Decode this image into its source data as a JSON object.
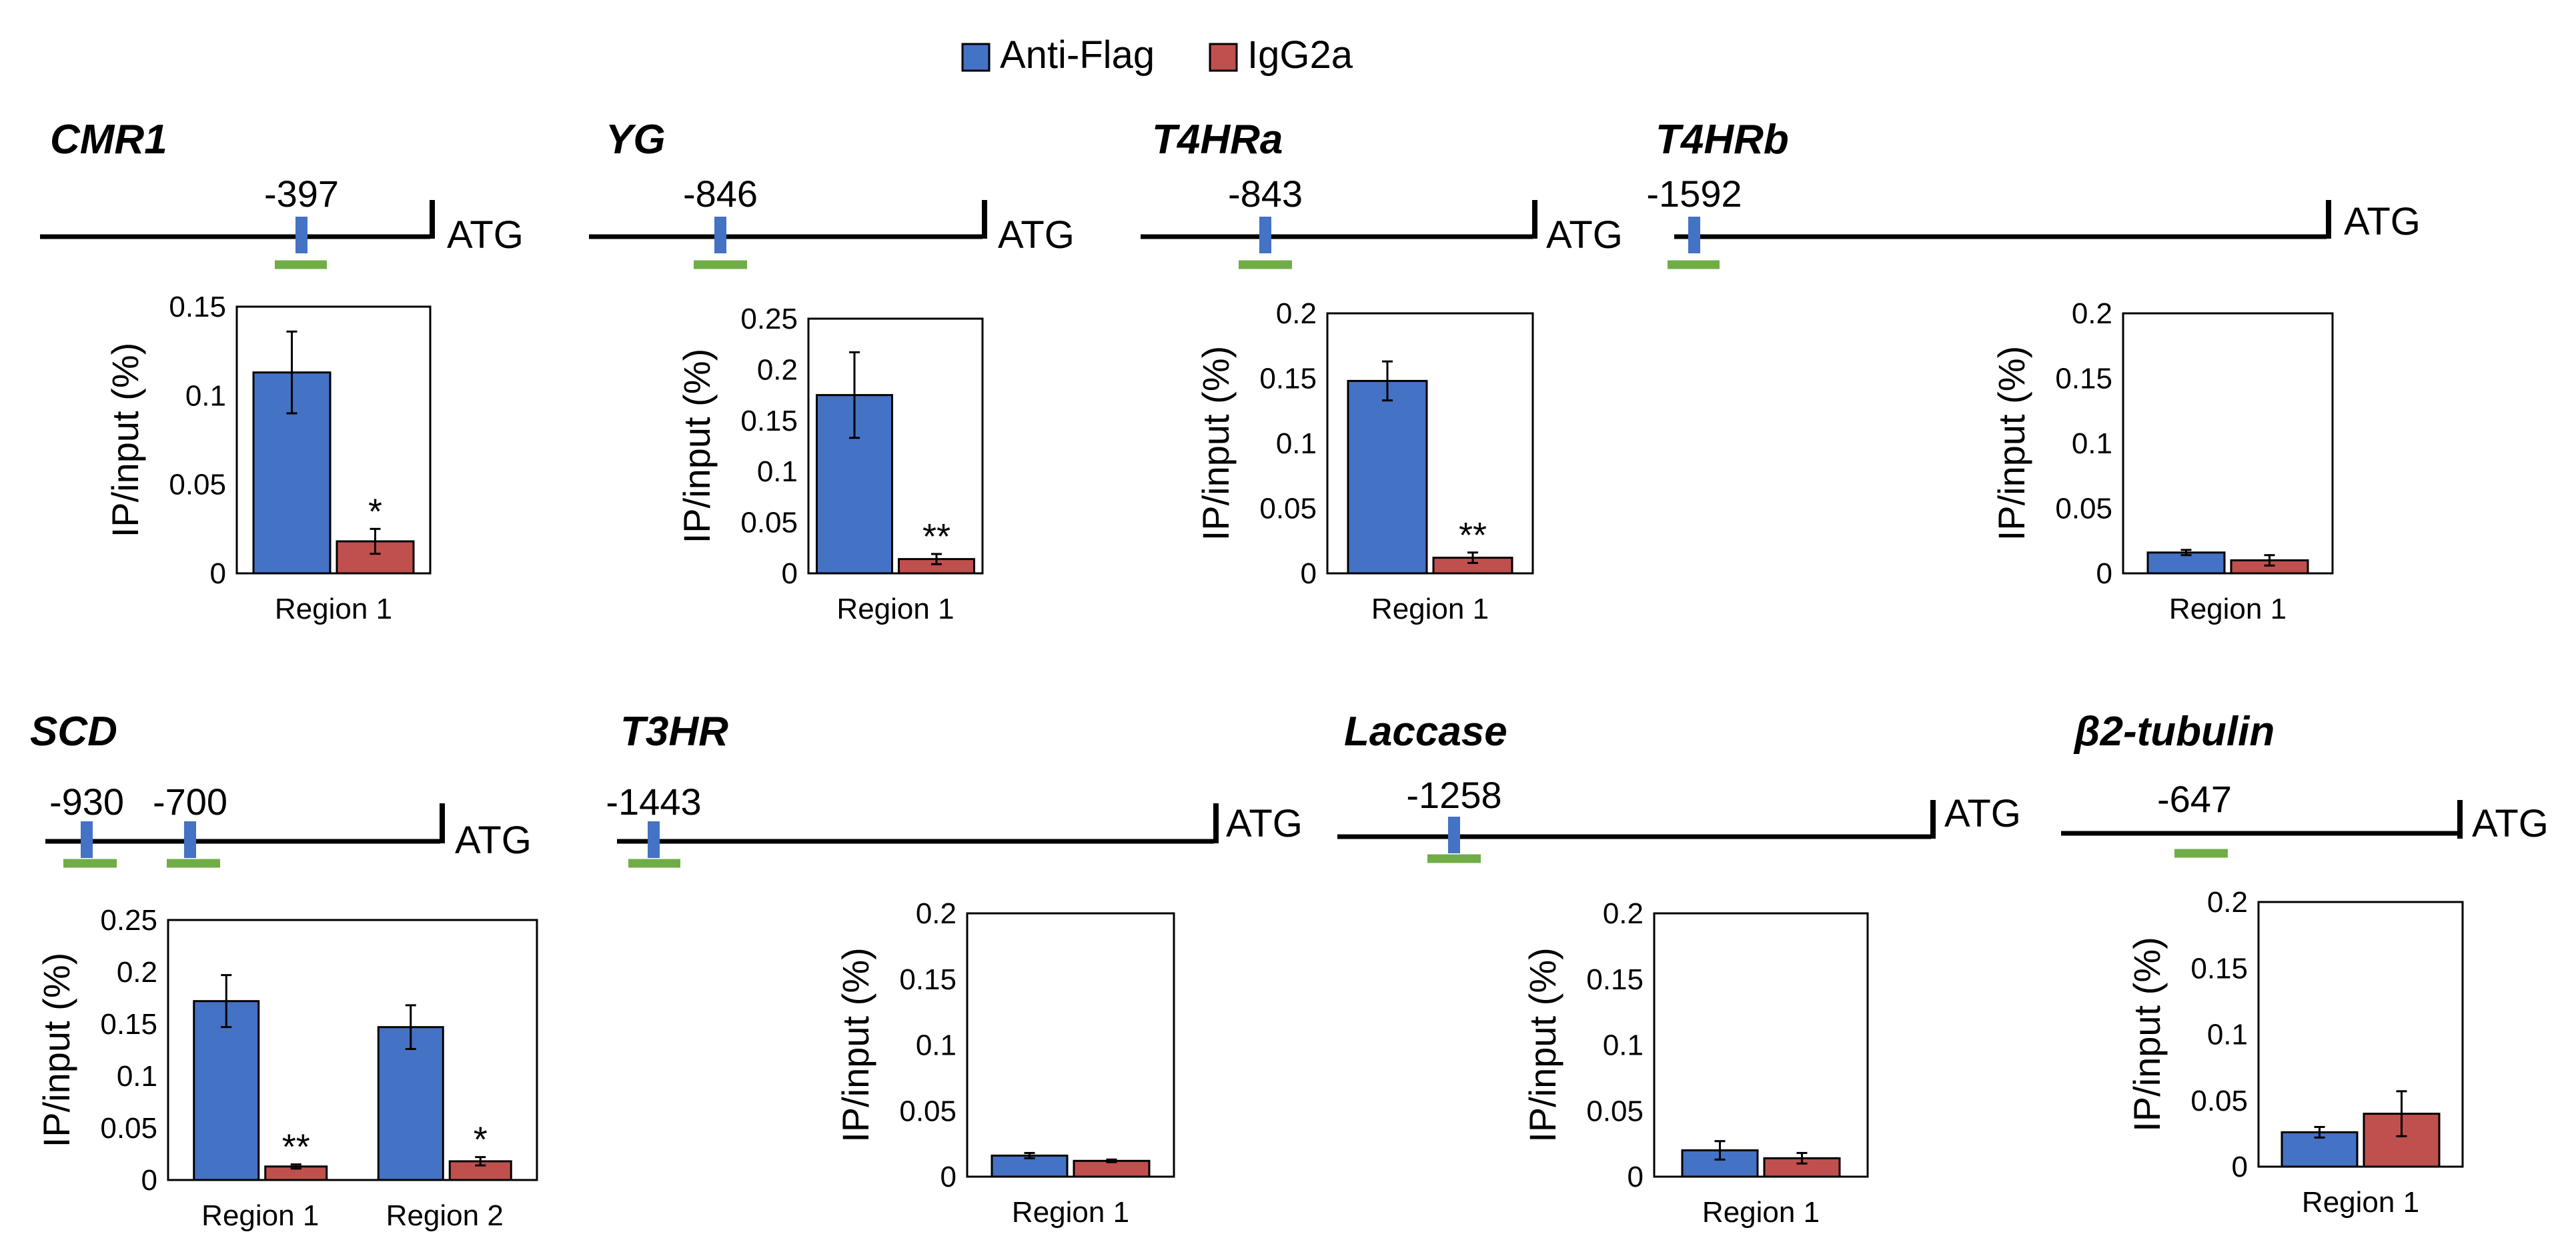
{
  "legend": [
    {
      "name": "Anti-Flag",
      "color": "#4472C4"
    },
    {
      "name": "IgG2a",
      "color": "#C0504D"
    }
  ],
  "chart_data": [
    {
      "type": "bar",
      "gene": "CMR1",
      "sites": [
        "-397"
      ],
      "atg": "ATG",
      "ylabel": "IP/input (%)",
      "ylim": [
        0,
        0.15
      ],
      "yticks": [
        "0",
        "0.05",
        "0.1",
        "0.15"
      ],
      "categories": [
        "Region 1"
      ],
      "series": [
        {
          "name": "Anti-Flag",
          "values": [
            0.113
          ],
          "errors": [
            0.023
          ]
        },
        {
          "name": "IgG2a",
          "values": [
            0.018
          ],
          "errors": [
            0.007
          ]
        }
      ],
      "sig": [
        "*"
      ]
    },
    {
      "type": "bar",
      "gene": "YG",
      "sites": [
        "-846"
      ],
      "atg": "ATG",
      "ylabel": "IP/input (%)",
      "ylim": [
        0,
        0.25
      ],
      "yticks": [
        "0",
        "0.05",
        "0.1",
        "0.15",
        "0.2",
        "0.25"
      ],
      "categories": [
        "Region 1"
      ],
      "series": [
        {
          "name": "Anti-Flag",
          "values": [
            0.175
          ],
          "errors": [
            0.042
          ]
        },
        {
          "name": "IgG2a",
          "values": [
            0.014
          ],
          "errors": [
            0.005
          ]
        }
      ],
      "sig": [
        "**"
      ]
    },
    {
      "type": "bar",
      "gene": "T4HRa",
      "sites": [
        "-843"
      ],
      "atg": "ATG",
      "ylabel": "IP/input (%)",
      "ylim": [
        0,
        0.2
      ],
      "yticks": [
        "0",
        "0.05",
        "0.1",
        "0.15",
        "0.2"
      ],
      "categories": [
        "Region 1"
      ],
      "series": [
        {
          "name": "Anti-Flag",
          "values": [
            0.148
          ],
          "errors": [
            0.015
          ]
        },
        {
          "name": "IgG2a",
          "values": [
            0.012
          ],
          "errors": [
            0.004
          ]
        }
      ],
      "sig": [
        "**"
      ]
    },
    {
      "type": "bar",
      "gene": "T4HRb",
      "sites": [
        "-1592"
      ],
      "atg": "ATG",
      "ylabel": "IP/input (%)",
      "ylim": [
        0,
        0.2
      ],
      "yticks": [
        "0",
        "0.05",
        "0.1",
        "0.15",
        "0.2"
      ],
      "categories": [
        "Region 1"
      ],
      "series": [
        {
          "name": "Anti-Flag",
          "values": [
            0.016
          ],
          "errors": [
            0.002
          ]
        },
        {
          "name": "IgG2a",
          "values": [
            0.01
          ],
          "errors": [
            0.004
          ]
        }
      ],
      "sig": [
        ""
      ]
    },
    {
      "type": "bar",
      "gene": "SCD",
      "sites": [
        "-930",
        "-700"
      ],
      "atg": "ATG",
      "ylabel": "IP/input (%)",
      "ylim": [
        0,
        0.25
      ],
      "yticks": [
        "0",
        "0.05",
        "0.1",
        "0.15",
        "0.2",
        "0.25"
      ],
      "categories": [
        "Region 1",
        "Region 2"
      ],
      "series": [
        {
          "name": "Anti-Flag",
          "values": [
            0.172,
            0.147
          ],
          "errors": [
            0.025,
            0.021
          ]
        },
        {
          "name": "IgG2a",
          "values": [
            0.013,
            0.018
          ],
          "errors": [
            0.002,
            0.004
          ]
        }
      ],
      "sig": [
        "**",
        "*"
      ]
    },
    {
      "type": "bar",
      "gene": "T3HR",
      "sites": [
        "-1443"
      ],
      "atg": "ATG",
      "ylabel": "IP/input (%)",
      "ylim": [
        0,
        0.2
      ],
      "yticks": [
        "0",
        "0.05",
        "0.1",
        "0.15",
        "0.2"
      ],
      "categories": [
        "Region 1"
      ],
      "series": [
        {
          "name": "Anti-Flag",
          "values": [
            0.016
          ],
          "errors": [
            0.002
          ]
        },
        {
          "name": "IgG2a",
          "values": [
            0.012
          ],
          "errors": [
            0.001
          ]
        }
      ],
      "sig": [
        ""
      ]
    },
    {
      "type": "bar",
      "gene": "Laccase",
      "sites": [
        "-1258"
      ],
      "atg": "ATG",
      "ylabel": "IP/input (%)",
      "ylim": [
        0,
        0.2
      ],
      "yticks": [
        "0",
        "0.05",
        "0.1",
        "0.15",
        "0.2"
      ],
      "categories": [
        "Region 1"
      ],
      "series": [
        {
          "name": "Anti-Flag",
          "values": [
            0.02
          ],
          "errors": [
            0.007
          ]
        },
        {
          "name": "IgG2a",
          "values": [
            0.014
          ],
          "errors": [
            0.004
          ]
        }
      ],
      "sig": [
        ""
      ]
    },
    {
      "type": "bar",
      "gene": "β2-tubulin",
      "sites": [
        "-647"
      ],
      "atg": "ATG",
      "ylabel": "IP/input (%)",
      "ylim": [
        0,
        0.2
      ],
      "yticks": [
        "0",
        "0.05",
        "0.1",
        "0.15",
        "0.2"
      ],
      "categories": [
        "Region 1"
      ],
      "series": [
        {
          "name": "Anti-Flag",
          "values": [
            0.026
          ],
          "errors": [
            0.004
          ]
        },
        {
          "name": "IgG2a",
          "values": [
            0.04
          ],
          "errors": [
            0.017
          ]
        }
      ],
      "sig": [
        ""
      ]
    }
  ]
}
